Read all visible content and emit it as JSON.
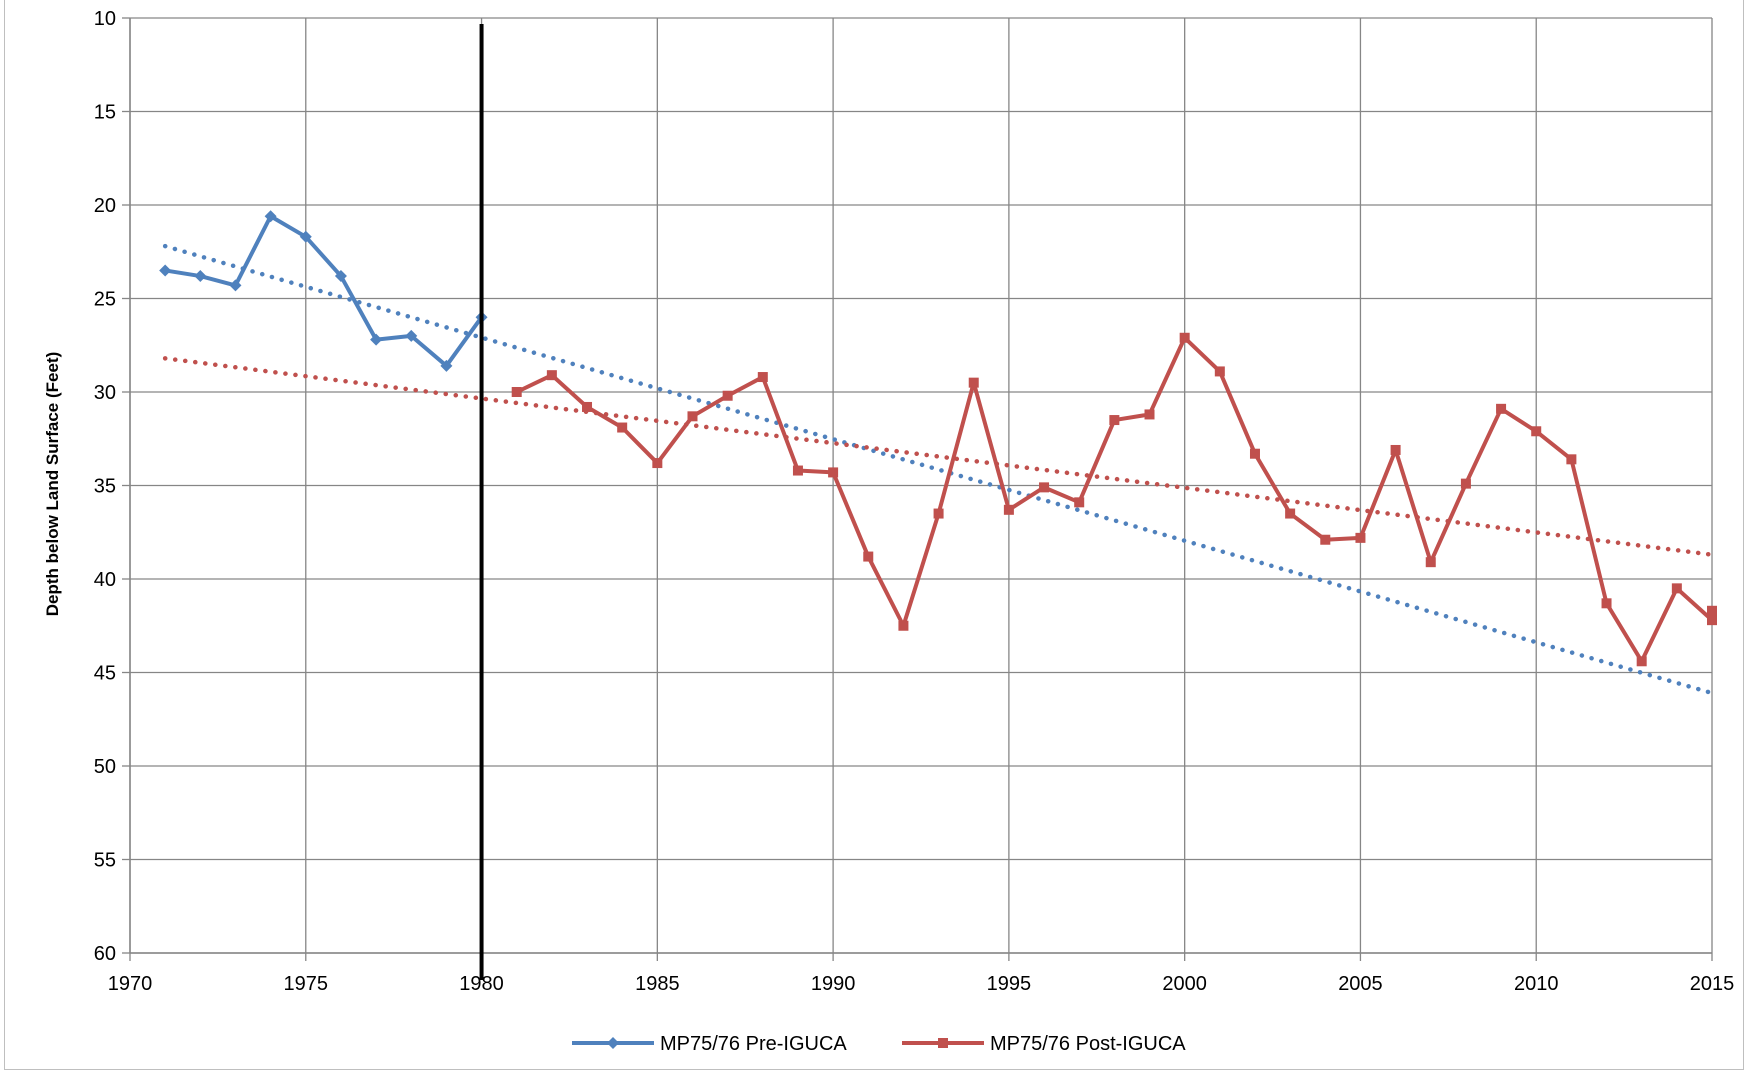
{
  "chart_data": {
    "type": "line",
    "title": "",
    "xlabel": "",
    "ylabel": "Depth below Land Surface (Feet)",
    "xlim": [
      1970,
      2015
    ],
    "ylim": [
      10,
      60
    ],
    "y_inverted": true,
    "xticks": [
      1970,
      1975,
      1980,
      1985,
      1990,
      1995,
      2000,
      2005,
      2010,
      2015
    ],
    "yticks": [
      10,
      15,
      20,
      25,
      30,
      35,
      40,
      45,
      50,
      55,
      60
    ],
    "grid": true,
    "legend_position": "bottom",
    "vertical_marker_x": 1980,
    "series": [
      {
        "name": "MP75/76 Pre-IGUCA",
        "color": "#4f81bd",
        "marker": "diamond",
        "x": [
          1971,
          1972,
          1973,
          1974,
          1975,
          1976,
          1977,
          1978,
          1979,
          1980
        ],
        "y": [
          23.5,
          23.8,
          24.3,
          20.6,
          21.7,
          23.8,
          27.2,
          27.0,
          28.6,
          26.0
        ],
        "trendline": {
          "style": "dotted",
          "x": [
            1971,
            2015
          ],
          "y": [
            22.2,
            46.1
          ]
        }
      },
      {
        "name": "MP75/76 Post-IGUCA",
        "color": "#c0504d",
        "marker": "square",
        "x": [
          1981,
          1982,
          1983,
          1984,
          1985,
          1986,
          1987,
          1988,
          1989,
          1990,
          1991,
          1992,
          1993,
          1994,
          1995,
          1996,
          1997,
          1998,
          1999,
          2000,
          2001,
          2002,
          2003,
          2004,
          2005,
          2006,
          2007,
          2008,
          2009,
          2010,
          2011,
          2012,
          2013,
          2014,
          2015,
          2015
        ],
        "y": [
          30.0,
          29.1,
          30.8,
          31.9,
          33.8,
          31.3,
          30.2,
          29.2,
          34.2,
          34.3,
          38.8,
          42.5,
          36.5,
          29.5,
          36.3,
          35.1,
          35.9,
          31.5,
          31.2,
          27.1,
          28.9,
          33.3,
          36.5,
          37.9,
          37.8,
          33.1,
          39.1,
          34.9,
          30.9,
          32.1,
          33.6,
          41.3,
          44.4,
          40.5,
          42.2,
          41.7
        ],
        "trendline": {
          "style": "dotted",
          "x": [
            1971,
            2015
          ],
          "y": [
            28.2,
            38.7
          ]
        }
      }
    ]
  }
}
